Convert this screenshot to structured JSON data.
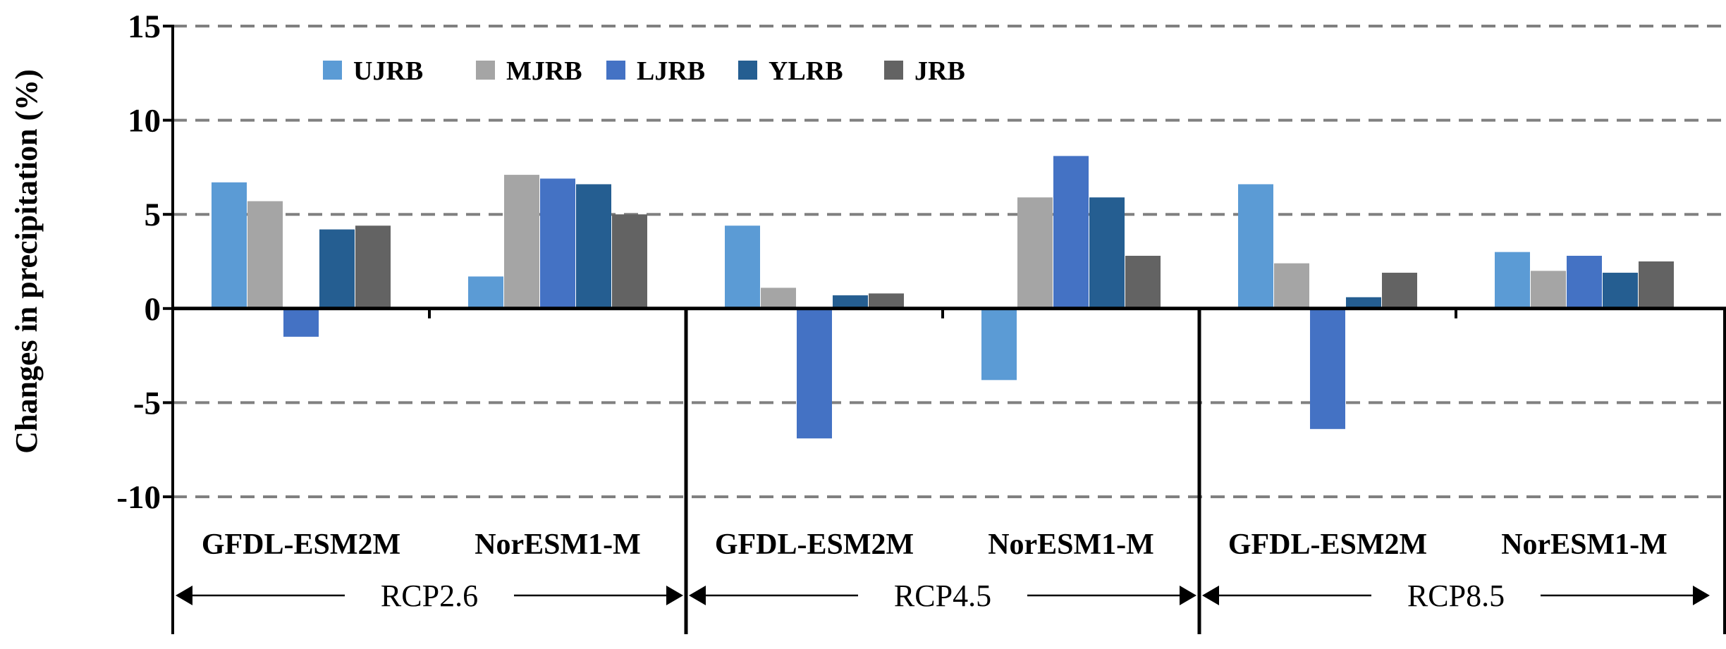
{
  "chart_data": {
    "type": "bar",
    "ylabel": "Changes in precipitation (%)",
    "ylim": [
      -10,
      15
    ],
    "y_ticks": [
      "15",
      "10",
      "5",
      "0",
      "-5",
      "-10"
    ],
    "y_tick_values": [
      15,
      10,
      5,
      0,
      -5,
      -10
    ],
    "grid": "dashed horizontal",
    "legend_position": "top-left",
    "groups": [
      {
        "name": "RCP2.6",
        "categories": [
          "GFDL-ESM2M",
          "NorESM1-M"
        ]
      },
      {
        "name": "RCP4.5",
        "categories": [
          "GFDL-ESM2M",
          "NorESM1-M"
        ]
      },
      {
        "name": "RCP8.5",
        "categories": [
          "GFDL-ESM2M",
          "NorESM1-M"
        ]
      }
    ],
    "categories": [
      "GFDL-ESM2M",
      "NorESM1-M",
      "GFDL-ESM2M",
      "NorESM1-M",
      "GFDL-ESM2M",
      "NorESM1-M"
    ],
    "series": [
      {
        "name": "UJRB",
        "color": "#5b9bd5",
        "values": [
          6.7,
          1.7,
          4.4,
          -3.8,
          6.6,
          3.0
        ]
      },
      {
        "name": "MJRB",
        "color": "#a5a5a5",
        "values": [
          5.7,
          7.1,
          1.1,
          5.9,
          2.4,
          2.0
        ]
      },
      {
        "name": "LJRB",
        "color": "#4472c4",
        "values": [
          -1.5,
          6.9,
          -6.9,
          8.1,
          -6.4,
          2.8
        ]
      },
      {
        "name": "YLRB",
        "color": "#255e91",
        "values": [
          4.2,
          6.6,
          0.7,
          5.9,
          0.6,
          1.9
        ]
      },
      {
        "name": "JRB",
        "color": "#636363",
        "values": [
          4.4,
          5.0,
          0.8,
          2.8,
          1.9,
          2.5
        ]
      }
    ]
  }
}
